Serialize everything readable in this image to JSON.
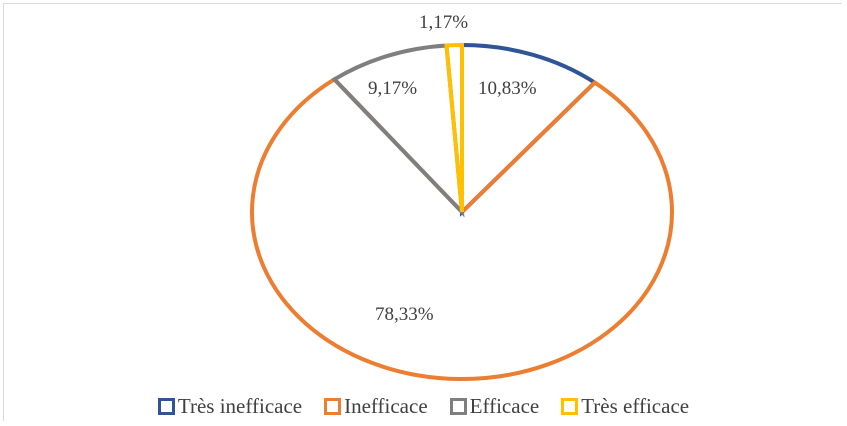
{
  "chart_data": {
    "type": "pie",
    "title": "",
    "slices": [
      {
        "name": "Très inefficace",
        "value": 10.83,
        "label": "10,83%",
        "color": "#2f5597"
      },
      {
        "name": "Inefficace",
        "value": 78.33,
        "label": "78,33%",
        "color": "#ed7d31"
      },
      {
        "name": "Efficace",
        "value": 9.17,
        "label": "9,17%",
        "color": "#7f7f7f"
      },
      {
        "name": "Très efficace",
        "value": 1.17,
        "label": "1,17%",
        "color": "#ffc000"
      }
    ],
    "legend_position": "bottom",
    "style": "outline slices"
  }
}
